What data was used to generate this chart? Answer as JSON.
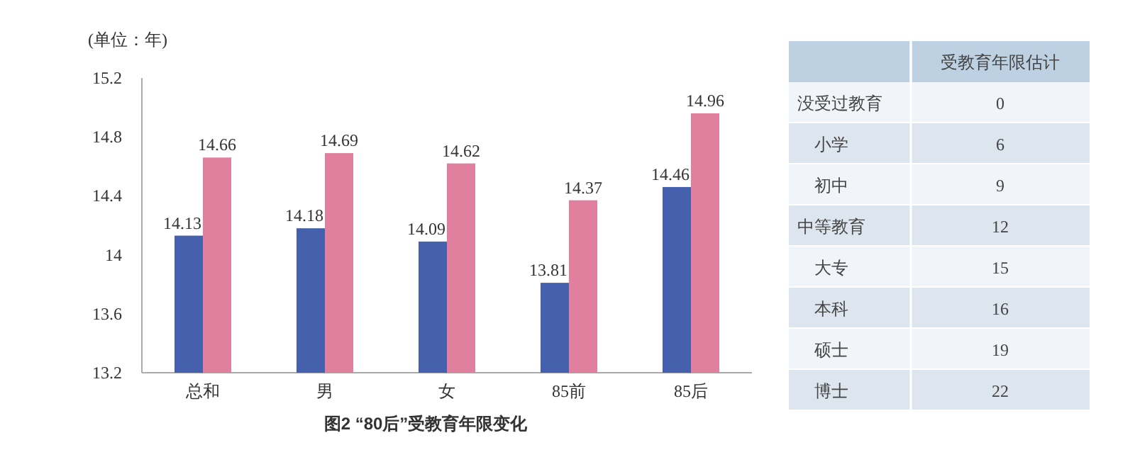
{
  "chart_data": [
    {
      "type": "bar",
      "title": "图2 “80后”受教育年限变化",
      "ylabel": "(单位：年)",
      "categories": [
        "总和",
        "男",
        "女",
        "85前",
        "85后"
      ],
      "series": [
        {
          "color": "#4560ad",
          "values": [
            14.13,
            14.18,
            14.09,
            13.81,
            14.46
          ]
        },
        {
          "color": "#e0809e",
          "values": [
            14.66,
            14.69,
            14.62,
            14.37,
            14.96
          ]
        }
      ],
      "ylim": [
        13.2,
        15.2
      ],
      "yticks": [
        13.2,
        13.6,
        14,
        14.4,
        14.8,
        15.2
      ],
      "grid": false,
      "data_labels": true
    },
    {
      "type": "other",
      "title": "受教育年限估计",
      "categories": [
        "没受过教育",
        "小学",
        "初中",
        "中等教育",
        "大专",
        "本科",
        "硕士",
        "博士"
      ],
      "values": [
        0,
        6,
        9,
        12,
        15,
        16,
        19,
        22
      ],
      "data_labels": true
    }
  ]
}
